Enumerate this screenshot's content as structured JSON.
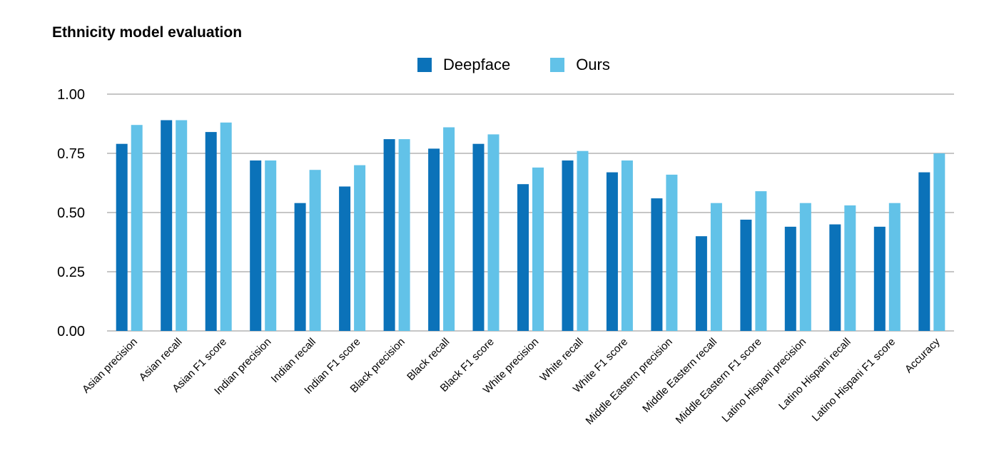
{
  "chart_data": {
    "type": "bar",
    "title": "Ethnicity model evaluation",
    "xlabel": "",
    "ylabel": "",
    "ylim": [
      0,
      1
    ],
    "yticks": [
      "0.00",
      "0.25",
      "0.50",
      "0.75",
      "1.00"
    ],
    "ytick_values": [
      0,
      0.25,
      0.5,
      0.75,
      1.0
    ],
    "grid": true,
    "legend_position": "top-center",
    "categories": [
      "Asian precision",
      "Asian recall",
      "Asian F1 score",
      "Indian precision",
      "Indian recall",
      "Indian F1 score",
      "Black precision",
      "Black recall",
      "Black F1 score",
      "White precision",
      "White recall",
      "White F1 score",
      "Middle Eastern precision",
      "Middle Eastern recall",
      "Middle Eastern F1 score",
      "Latino Hispani precision",
      "Latino Hispani recall",
      "Latino Hispani F1 score",
      "Accuracy"
    ],
    "series": [
      {
        "name": "Deepface",
        "color": "#0B72B9",
        "values": [
          0.79,
          0.89,
          0.84,
          0.72,
          0.54,
          0.61,
          0.81,
          0.77,
          0.79,
          0.62,
          0.72,
          0.67,
          0.56,
          0.4,
          0.47,
          0.44,
          0.45,
          0.44,
          0.67
        ]
      },
      {
        "name": "Ours",
        "color": "#62C2E8",
        "values": [
          0.87,
          0.89,
          0.88,
          0.72,
          0.68,
          0.7,
          0.81,
          0.86,
          0.83,
          0.69,
          0.76,
          0.72,
          0.66,
          0.54,
          0.59,
          0.54,
          0.53,
          0.54,
          0.75
        ]
      }
    ]
  }
}
